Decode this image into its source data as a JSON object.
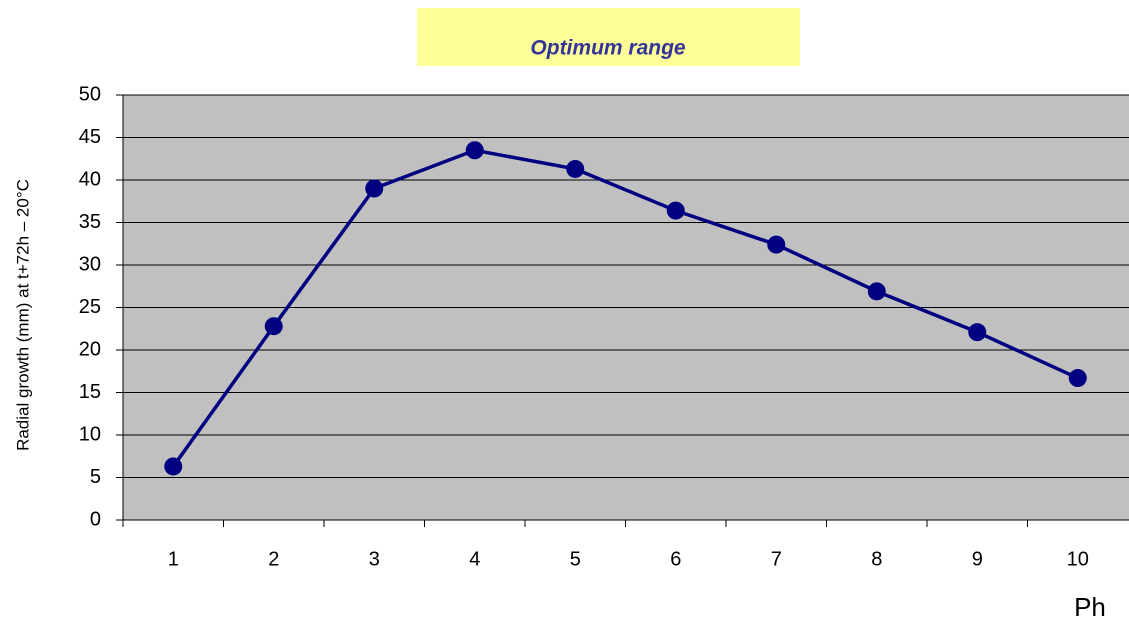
{
  "chart_data": {
    "type": "line",
    "annotation": "Optimum range",
    "y_label": "Radial growth (mm) at t+72h – 20°C",
    "x_label": "Ph",
    "categories": [
      1,
      2,
      3,
      4,
      5,
      6,
      7,
      8,
      9,
      10
    ],
    "series": [
      {
        "name": "Radial growth",
        "color": "#000080",
        "values": [
          6.3,
          22.8,
          39.0,
          43.5,
          41.3,
          36.4,
          32.4,
          26.9,
          22.1,
          16.7
        ]
      }
    ],
    "ylim": [
      0,
      50
    ],
    "yticks": [
      0,
      5,
      10,
      15,
      20,
      25,
      30,
      35,
      40,
      45,
      50
    ],
    "grid": true,
    "legend": false
  }
}
